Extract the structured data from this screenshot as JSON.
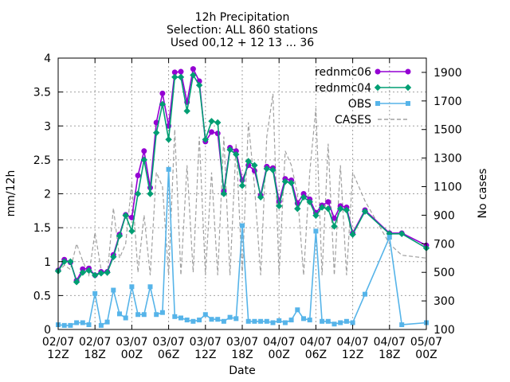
{
  "chart_data": {
    "type": "line",
    "title": [
      "12h Precipitation",
      "Selection: ALL    860 stations",
      "Used 00,12 + 12 13 ... 36"
    ],
    "xlabel": "Date",
    "ylabel": "mm/12h",
    "y2label": "No cases",
    "xlim": [
      0,
      60
    ],
    "ylim": [
      0,
      4
    ],
    "y2lim": [
      100,
      2000
    ],
    "grid": true,
    "legend_position": "top-right",
    "x_ticks": [
      {
        "value": 0,
        "line1": "02/07",
        "line2": "12Z"
      },
      {
        "value": 6,
        "line1": "02/07",
        "line2": "18Z"
      },
      {
        "value": 12,
        "line1": "03/07",
        "line2": "00Z"
      },
      {
        "value": 18,
        "line1": "03/07",
        "line2": "06Z"
      },
      {
        "value": 24,
        "line1": "03/07",
        "line2": "12Z"
      },
      {
        "value": 30,
        "line1": "03/07",
        "line2": "18Z"
      },
      {
        "value": 36,
        "line1": "04/07",
        "line2": "00Z"
      },
      {
        "value": 42,
        "line1": "04/07",
        "line2": "06Z"
      },
      {
        "value": 48,
        "line1": "04/07",
        "line2": "12Z"
      },
      {
        "value": 54,
        "line1": "04/07",
        "line2": "18Z"
      },
      {
        "value": 60,
        "line1": "05/07",
        "line2": "00Z"
      }
    ],
    "y_ticks": [
      "0",
      "0.5",
      "1",
      "1.5",
      "2",
      "2.5",
      "3",
      "3.5",
      "4"
    ],
    "y2_ticks": [
      "100",
      "300",
      "500",
      "700",
      "900",
      "1100",
      "1300",
      "1500",
      "1700",
      "1900"
    ],
    "series": [
      {
        "name": "rednmc06",
        "axis": "y",
        "color": "#9400d3",
        "marker": "circle",
        "dash": "",
        "x": [
          0,
          1,
          2,
          3,
          4,
          5,
          6,
          7,
          8,
          9,
          10,
          11,
          12,
          13,
          14,
          15,
          16,
          17,
          18,
          19,
          20,
          21,
          22,
          23,
          24,
          25,
          26,
          27,
          28,
          29,
          30,
          31,
          32,
          33,
          34,
          35,
          36,
          37,
          38,
          39,
          40,
          41,
          42,
          43,
          44,
          45,
          46,
          47,
          48,
          50,
          54,
          56,
          60
        ],
        "y": [
          0.87,
          1.03,
          0.99,
          0.72,
          0.89,
          0.9,
          0.8,
          0.85,
          0.85,
          1.1,
          1.4,
          1.69,
          1.65,
          2.27,
          2.63,
          2.09,
          3.05,
          3.48,
          3.0,
          3.79,
          3.8,
          3.35,
          3.84,
          3.66,
          2.77,
          2.91,
          2.89,
          2.04,
          2.68,
          2.63,
          2.2,
          2.42,
          2.34,
          1.98,
          2.4,
          2.38,
          1.89,
          2.22,
          2.2,
          1.86,
          2.0,
          1.92,
          1.72,
          1.83,
          1.88,
          1.64,
          1.82,
          1.8,
          1.42,
          1.76,
          1.42,
          1.42,
          1.24
        ]
      },
      {
        "name": "rednmc04",
        "axis": "y",
        "color": "#009e73",
        "marker": "diamond",
        "dash": "",
        "x": [
          0,
          1,
          2,
          3,
          4,
          5,
          6,
          7,
          8,
          9,
          10,
          11,
          12,
          13,
          14,
          15,
          16,
          17,
          18,
          19,
          20,
          21,
          22,
          23,
          24,
          25,
          26,
          27,
          28,
          29,
          30,
          31,
          32,
          33,
          34,
          35,
          36,
          37,
          38,
          39,
          40,
          41,
          42,
          43,
          44,
          45,
          46,
          47,
          48,
          50,
          54,
          56,
          60
        ],
        "y": [
          0.86,
          1.0,
          1.0,
          0.7,
          0.84,
          0.87,
          0.8,
          0.83,
          0.84,
          1.07,
          1.38,
          1.68,
          1.45,
          2.0,
          2.5,
          2.0,
          2.9,
          3.32,
          2.8,
          3.72,
          3.72,
          3.22,
          3.75,
          3.6,
          2.8,
          3.07,
          3.05,
          2.0,
          2.65,
          2.58,
          2.12,
          2.48,
          2.42,
          1.95,
          2.37,
          2.35,
          1.82,
          2.18,
          2.16,
          1.78,
          1.95,
          1.88,
          1.68,
          1.8,
          1.78,
          1.52,
          1.78,
          1.76,
          1.4,
          1.74,
          1.41,
          1.41,
          1.2
        ]
      },
      {
        "name": "OBS",
        "axis": "y",
        "color": "#56b4e9",
        "marker": "square",
        "dash": "",
        "x": [
          0,
          1,
          2,
          3,
          4,
          5,
          6,
          7,
          8,
          9,
          10,
          11,
          12,
          13,
          14,
          15,
          16,
          17,
          18,
          19,
          20,
          21,
          22,
          23,
          24,
          25,
          26,
          27,
          28,
          29,
          30,
          31,
          32,
          33,
          34,
          35,
          36,
          37,
          38,
          39,
          40,
          41,
          42,
          43,
          44,
          45,
          46,
          47,
          48,
          50,
          54,
          56,
          60
        ],
        "y": [
          0.07,
          0.06,
          0.06,
          0.1,
          0.1,
          0.07,
          0.53,
          0.06,
          0.11,
          0.58,
          0.23,
          0.17,
          0.63,
          0.22,
          0.22,
          0.63,
          0.22,
          0.25,
          2.36,
          0.19,
          0.17,
          0.14,
          0.12,
          0.14,
          0.22,
          0.15,
          0.15,
          0.12,
          0.18,
          0.16,
          1.53,
          0.12,
          0.12,
          0.12,
          0.12,
          0.1,
          0.13,
          0.1,
          0.14,
          0.29,
          0.16,
          0.14,
          1.45,
          0.12,
          0.12,
          0.08,
          0.1,
          0.12,
          0.1,
          0.52,
          1.36,
          0.07,
          0.1
        ]
      },
      {
        "name": "CASES",
        "axis": "y2",
        "color": "#a0a0a0",
        "marker": "none",
        "dash": "5,3",
        "x": [
          0,
          1,
          2,
          3,
          4,
          5,
          6,
          7,
          8,
          9,
          10,
          11,
          12,
          13,
          14,
          15,
          16,
          17,
          18,
          19,
          20,
          21,
          22,
          23,
          24,
          25,
          26,
          27,
          28,
          29,
          30,
          31,
          32,
          33,
          34,
          35,
          36,
          37,
          38,
          39,
          40,
          41,
          42,
          43,
          44,
          45,
          46,
          47,
          48,
          50,
          54,
          56,
          60
        ],
        "y": [
          500,
          550,
          520,
          700,
          580,
          480,
          780,
          520,
          480,
          950,
          600,
          700,
          1130,
          500,
          900,
          480,
          1200,
          1100,
          480,
          1500,
          480,
          1250,
          500,
          1450,
          480,
          1200,
          480,
          1450,
          480,
          1400,
          480,
          1550,
          1100,
          480,
          1450,
          1750,
          480,
          1350,
          1250,
          1050,
          480,
          1200,
          1650,
          480,
          1400,
          480,
          1250,
          480,
          1200,
          1000,
          700,
          620,
          600
        ]
      }
    ]
  }
}
